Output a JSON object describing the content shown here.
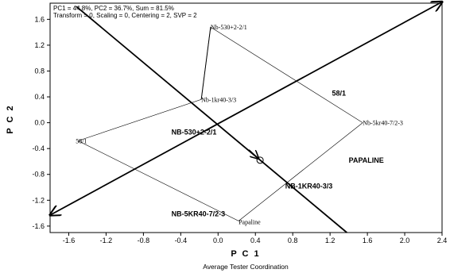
{
  "header": {
    "line1": "PC1 = 44.8%, PC2 = 36.7%, Sum = 81.5%",
    "line2": "Transform = 0, Scaling = 0, Centering = 2, SVP = 2"
  },
  "chart_data": {
    "type": "scatter",
    "xlabel": "P C 1",
    "ylabel": "P C 2",
    "subtitle": "Average Tester Coordination",
    "xlim": [
      -1.8,
      2.4
    ],
    "ylim": [
      -1.7,
      1.85
    ],
    "x_ticks": [
      -1.6,
      -1.2,
      -0.8,
      -0.4,
      0.0,
      0.4,
      0.8,
      1.2,
      1.6,
      2.0,
      2.4
    ],
    "x_tick_labels": [
      "-1.6",
      "-1.2",
      "-0.8",
      "-0.4",
      "0.0",
      "0.4",
      "0.8",
      "1.2",
      "1.6",
      "2.0",
      "2.4"
    ],
    "y_ticks": [
      1.6,
      1.2,
      0.8,
      0.4,
      0.0,
      -0.4,
      -0.8,
      -1.2,
      -1.6
    ],
    "y_tick_labels": [
      "1.6",
      "1.2",
      "0.8",
      "0.4",
      "0.0",
      "-0.4",
      "-0.8",
      "-1.2",
      "-1.6"
    ],
    "testers": [
      {
        "label": "Nb-530+2-2/1",
        "x": -0.08,
        "y": 1.48
      },
      {
        "label": "Nb-1kr40-3/3",
        "x": -0.18,
        "y": 0.36
      },
      {
        "label": "58/1",
        "x": -1.5,
        "y": -0.28
      },
      {
        "label": "Nb-5kr40-7/2-3",
        "x": 1.55,
        "y": 0.0
      },
      {
        "label": "Papaline",
        "x": 0.22,
        "y": -1.52
      }
    ],
    "polygon_order": [
      "Nb-530+2-2/1",
      "Nb-5kr40-7/2-3",
      "Papaline",
      "58/1",
      "Nb-1kr40-3/3"
    ],
    "entries": [
      {
        "label": "58/1",
        "x": 1.22,
        "y": 0.42
      },
      {
        "label": "NB-530+2-2/1",
        "x": -0.5,
        "y": -0.18
      },
      {
        "label": "PAPALINE",
        "x": 1.4,
        "y": -0.62
      },
      {
        "label": "NB-1KR40-3/3",
        "x": 0.72,
        "y": -1.02
      },
      {
        "label": "NB-5KR40-7/2-3",
        "x": -0.5,
        "y": -1.45
      }
    ],
    "ate_axis": {
      "from": [
        -1.8,
        -1.43
      ],
      "to": [
        2.4,
        1.87
      ]
    },
    "perp_axis": {
      "from": [
        -1.52,
        1.8
      ],
      "to": [
        1.38,
        -1.7
      ]
    },
    "average_tester": {
      "x": 0.45,
      "y": -0.58
    }
  }
}
